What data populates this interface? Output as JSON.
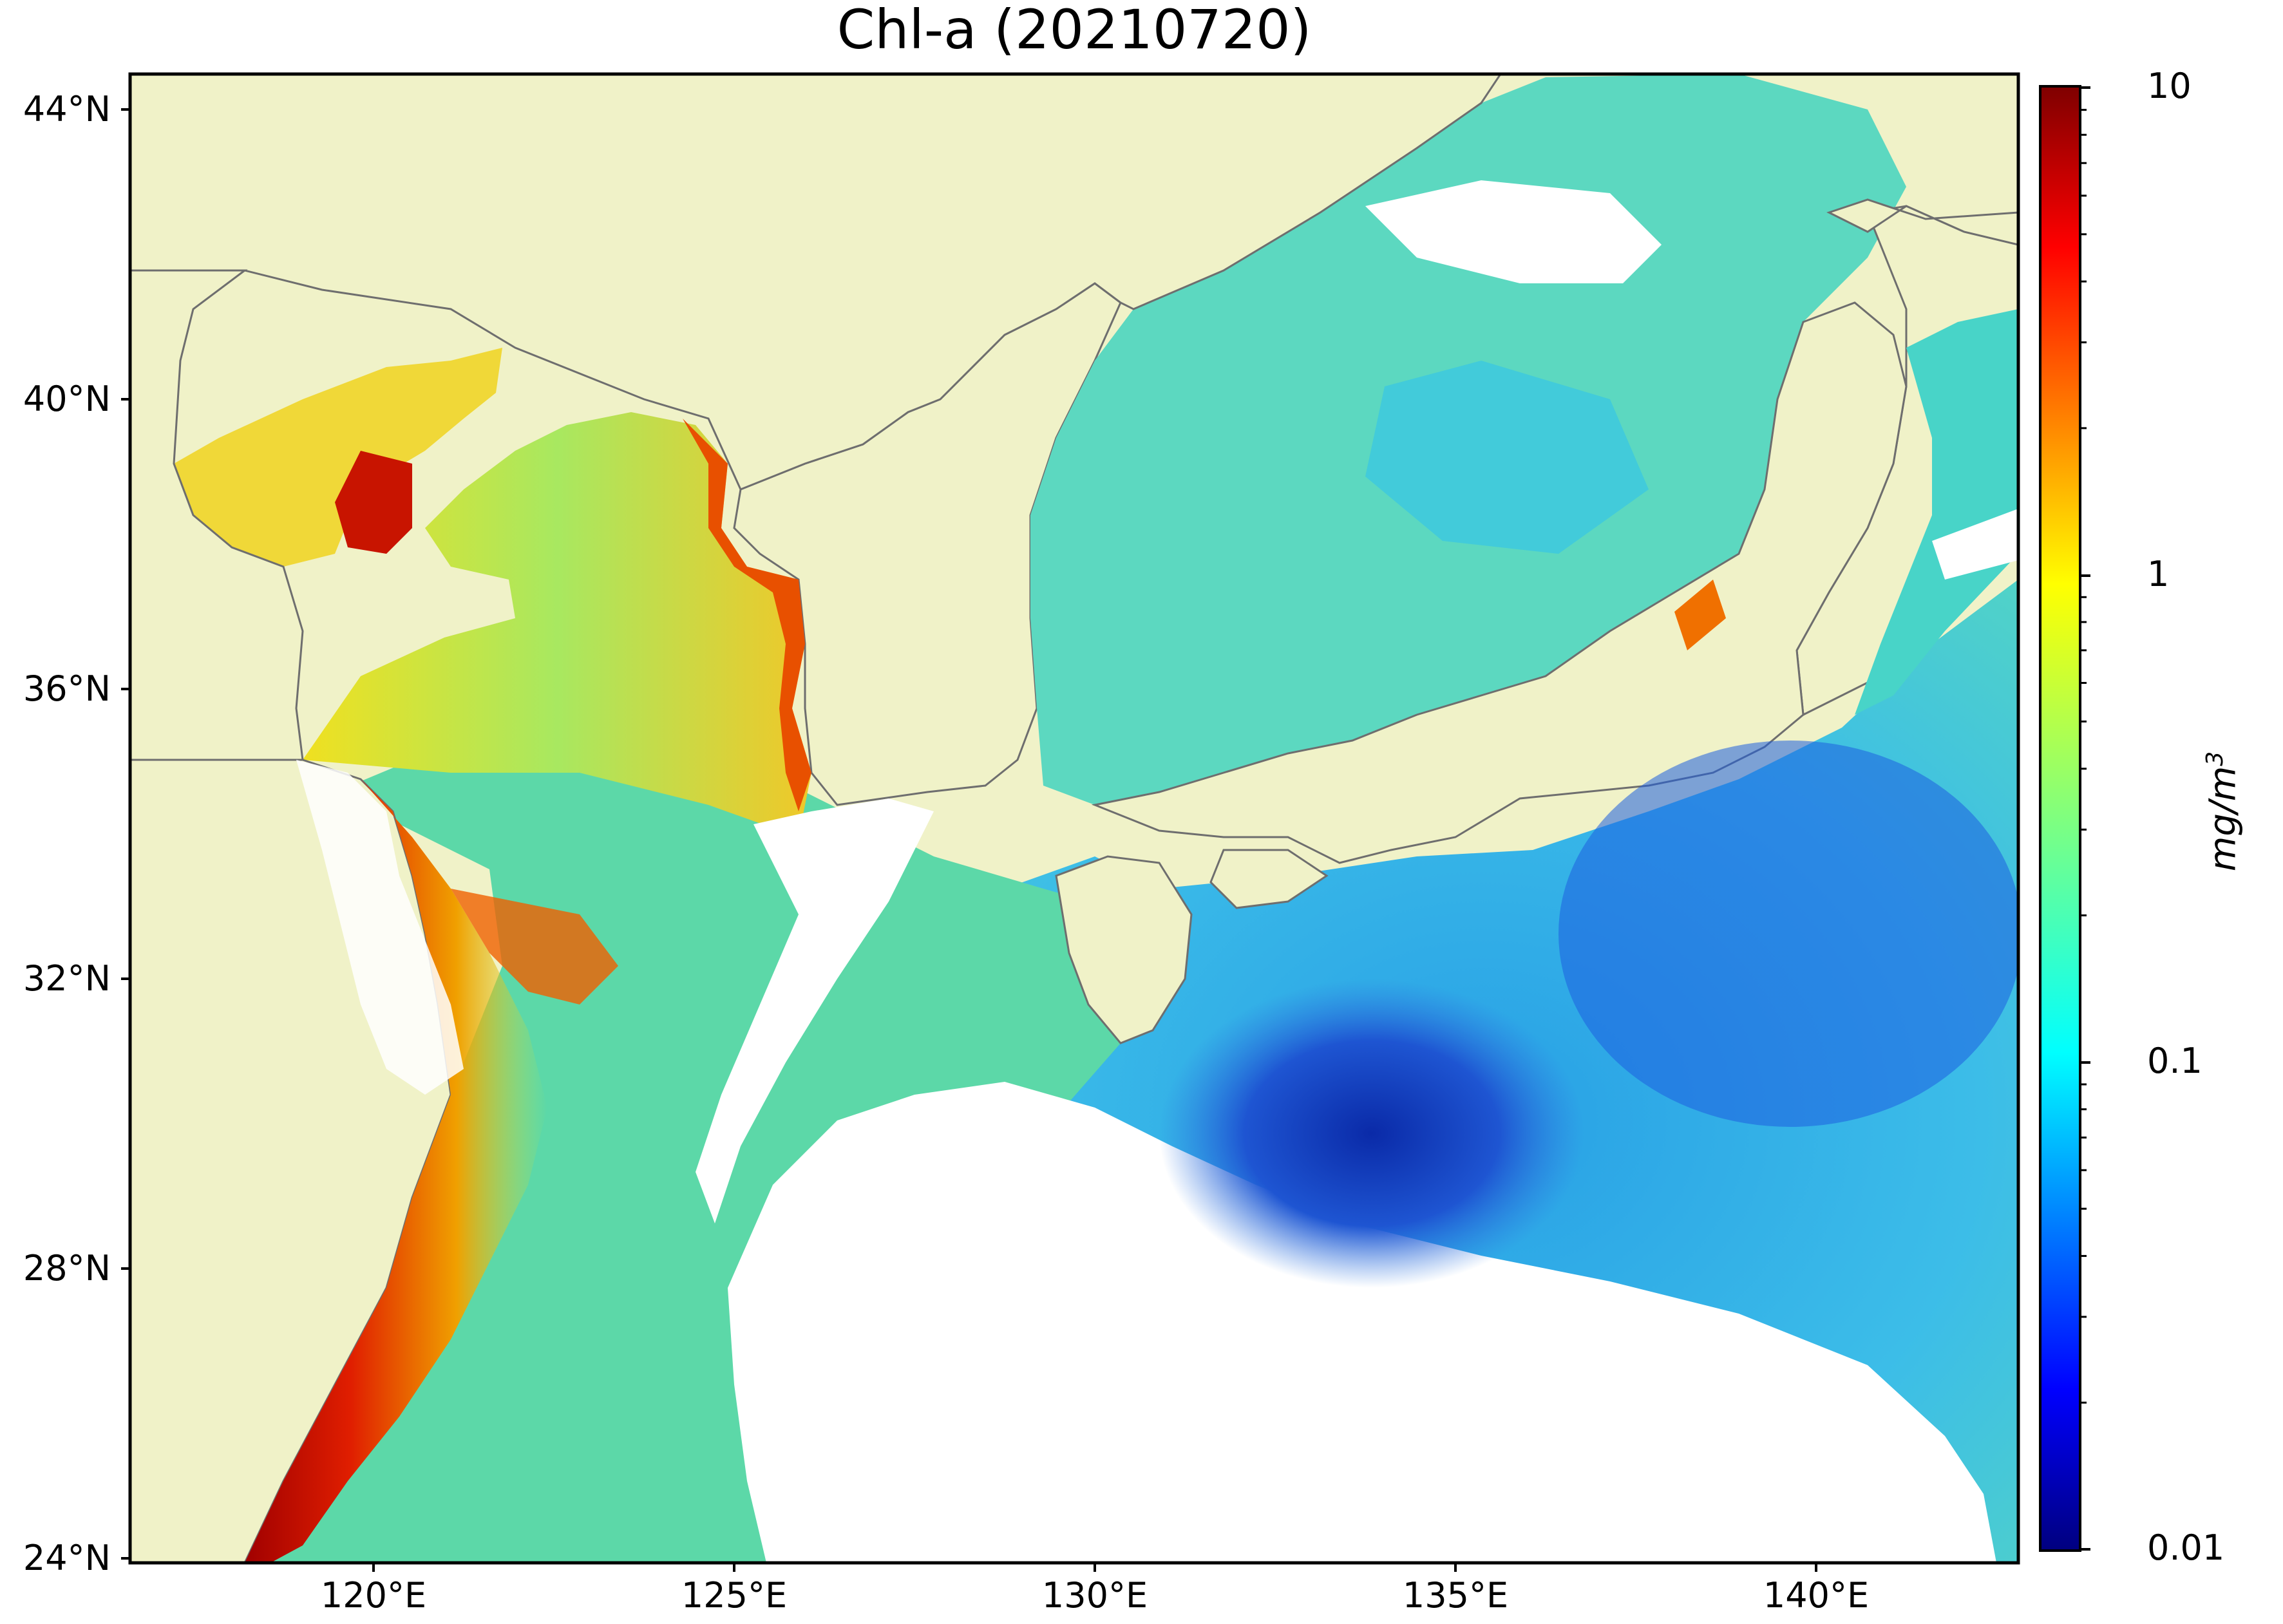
{
  "title": "Chl-a (20210720)",
  "latitude_labels": [
    "44°N",
    "40°N",
    "36°N",
    "32°N",
    "28°N",
    "24°N"
  ],
  "longitude_labels": [
    "120°E",
    "125°E",
    "130°E",
    "135°E",
    "140°E"
  ],
  "colorbar": {
    "tick_labels": [
      "10",
      "1",
      "0.1",
      "0.01"
    ],
    "unit_main": "mg/m",
    "unit_exp": "3",
    "colormap": "jet",
    "scale": "log",
    "range": [
      0.01,
      10
    ]
  },
  "colors": {
    "land": "#f0f2c8",
    "coastline": "#6e6e6e",
    "no_data": "#ffffff",
    "frame": "#000000"
  }
}
